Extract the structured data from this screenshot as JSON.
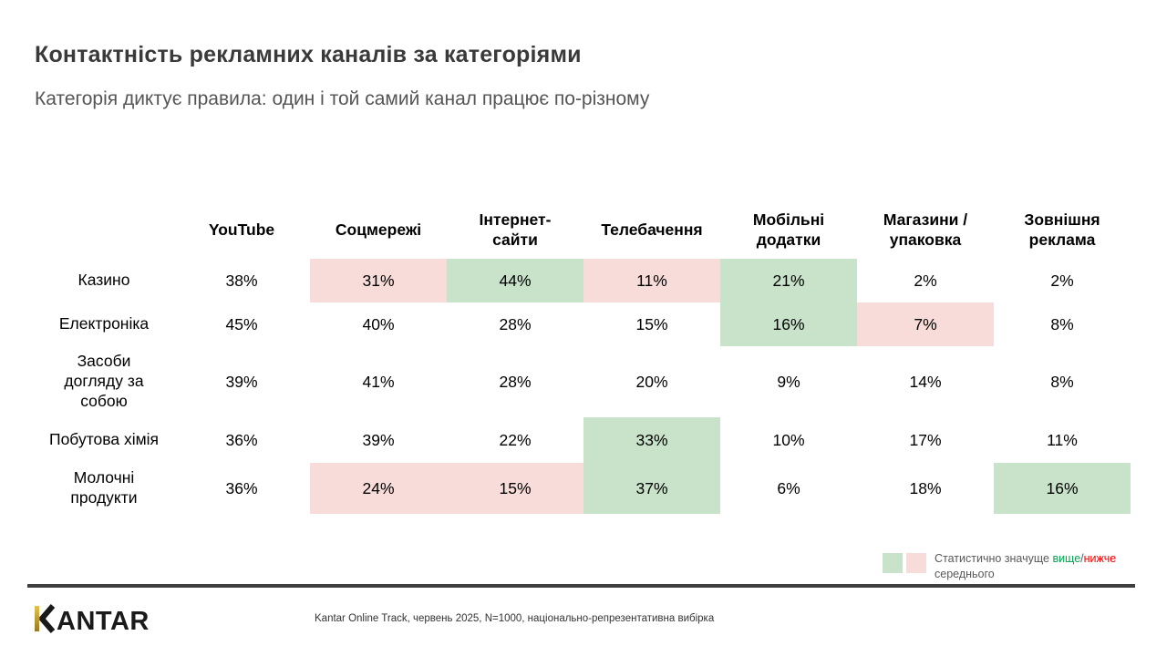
{
  "slide": {
    "title": "Контактність рекламних каналів за категоріями",
    "subtitle": "Категорія диктує правила: один і той самий канал працює по-різному"
  },
  "chart_data": {
    "type": "table",
    "title": "Контактність рекламних каналів за категоріями",
    "columns": [
      "YouTube",
      "Соцмережі",
      "Інтернет-сайти",
      "Телебачення",
      "Мобільні додатки",
      "Магазини / упаковка",
      "Зовнішня реклама"
    ],
    "columns_display": [
      "YouTube",
      "Соцмережі",
      "Інтернет-\nсайти",
      "Телебачення",
      "Мобільні\nдодатки",
      "Магазини /\nупаковка",
      "Зовнішня\nреклама"
    ],
    "rows": [
      "Казино",
      "Електроніка",
      "Засоби догляду за собою",
      "Побутова хімія",
      "Молочні продукти"
    ],
    "rows_display": [
      "Казино",
      "Електроніка",
      "Засоби\nдогляду за\nсобою",
      "Побутова хімія",
      "Молочні\nпродукти"
    ],
    "values": [
      [
        38,
        31,
        44,
        11,
        21,
        2,
        2
      ],
      [
        45,
        40,
        28,
        15,
        16,
        7,
        8
      ],
      [
        39,
        41,
        28,
        20,
        9,
        14,
        8
      ],
      [
        36,
        39,
        22,
        33,
        10,
        17,
        11
      ],
      [
        36,
        24,
        15,
        37,
        6,
        18,
        16
      ]
    ],
    "value_suffix": "%",
    "highlights": [
      [
        null,
        "lower",
        "higher",
        "lower",
        "higher",
        null,
        null
      ],
      [
        null,
        null,
        null,
        null,
        "higher",
        "lower",
        null
      ],
      [
        null,
        null,
        null,
        null,
        null,
        null,
        null
      ],
      [
        null,
        null,
        null,
        "higher",
        null,
        null,
        null
      ],
      [
        null,
        "lower",
        "lower",
        "higher",
        null,
        null,
        "higher"
      ]
    ],
    "highlight_colors": {
      "higher": "#c8e3c9",
      "lower": "#f8dcd9"
    }
  },
  "legend": {
    "prefix": "Статистично значуще ",
    "higher_word": "вище",
    "separator": "/",
    "lower_word": "нижче",
    "suffix": " середнього",
    "higher_text_color": "#00a651",
    "lower_text_color": "#fe0000"
  },
  "footer": {
    "logo_text": "KANTAR",
    "logo_text_rest": "ANTAR",
    "logo_accent_color": "#c9a227",
    "source": "Kantar Online Track, червень 2025, N=1000, національно-репрезентативна вибірка"
  }
}
